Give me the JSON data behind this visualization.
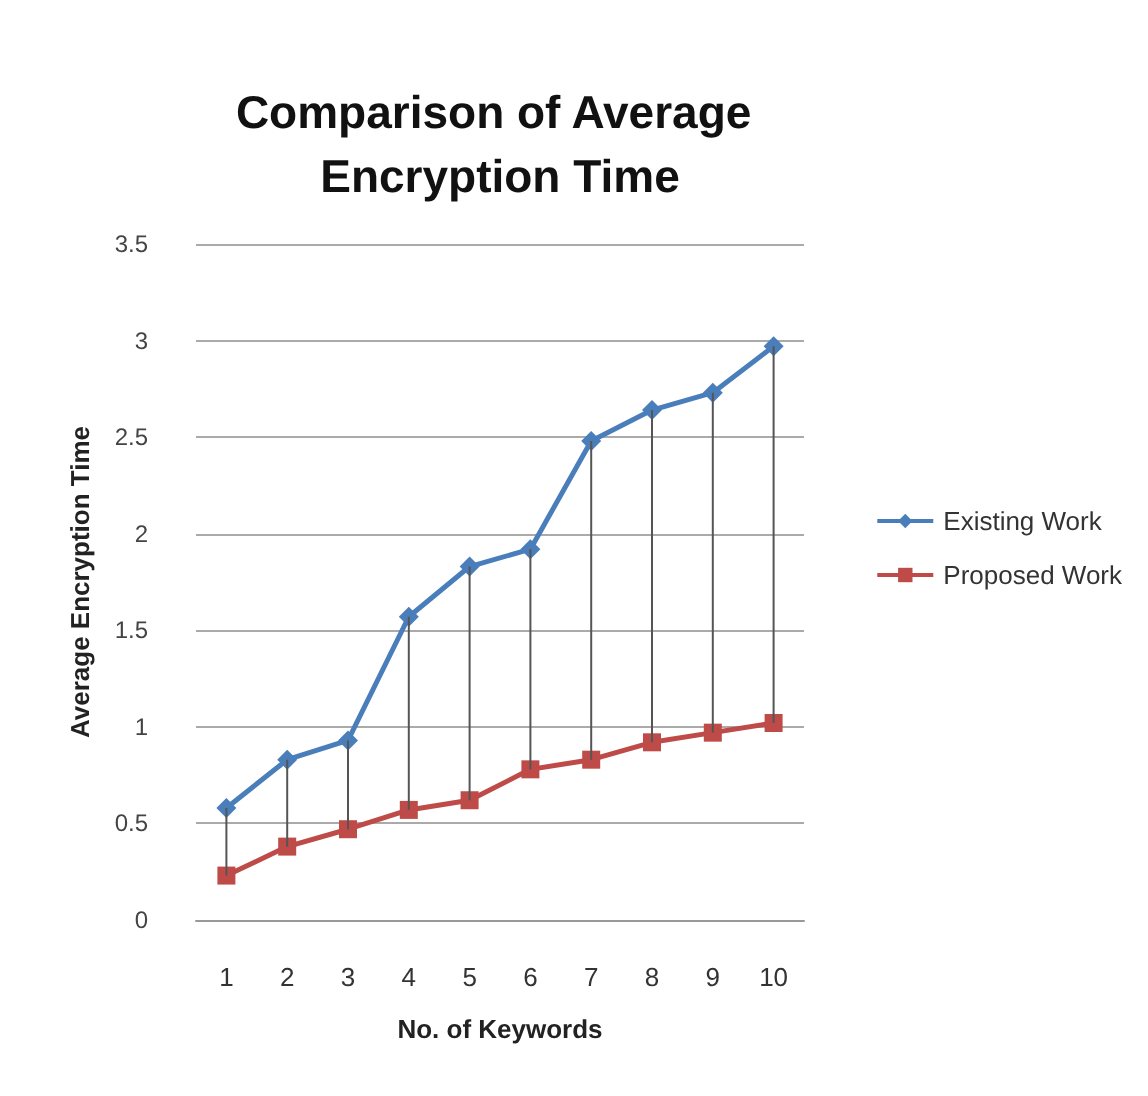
{
  "chart_data": {
    "type": "line",
    "title": "Comparison of Average Encryption Time",
    "xlabel": "No. of Keywords",
    "ylabel": "Average Encryption Time",
    "categories": [
      "1",
      "2",
      "3",
      "4",
      "5",
      "6",
      "7",
      "8",
      "9",
      "10"
    ],
    "series": [
      {
        "name": "Existing Work",
        "color": "#4a7ebb",
        "marker": "diamond",
        "values": [
          0.58,
          0.83,
          0.93,
          1.57,
          1.83,
          1.92,
          2.48,
          2.64,
          2.73,
          2.97
        ]
      },
      {
        "name": "Proposed Work",
        "color": "#be4b48",
        "marker": "square",
        "values": [
          0.23,
          0.38,
          0.47,
          0.57,
          0.62,
          0.78,
          0.83,
          0.92,
          0.97,
          1.02
        ],
        "errors": [
          [
            0.23,
            0.58
          ],
          [
            0.38,
            0.83
          ],
          [
            0.47,
            0.93
          ],
          [
            0.57,
            1.57
          ],
          [
            0.62,
            1.83
          ],
          [
            0.78,
            1.92
          ],
          [
            0.83,
            2.48
          ],
          [
            0.92,
            2.64
          ],
          [
            0.97,
            2.73
          ],
          [
            1.02,
            2.97
          ]
        ]
      }
    ],
    "ylim": [
      0,
      3.5
    ],
    "yticks": [
      0,
      0.5,
      1,
      1.5,
      2,
      2.5,
      3,
      3.5
    ],
    "grid": "y",
    "legend": "right"
  }
}
